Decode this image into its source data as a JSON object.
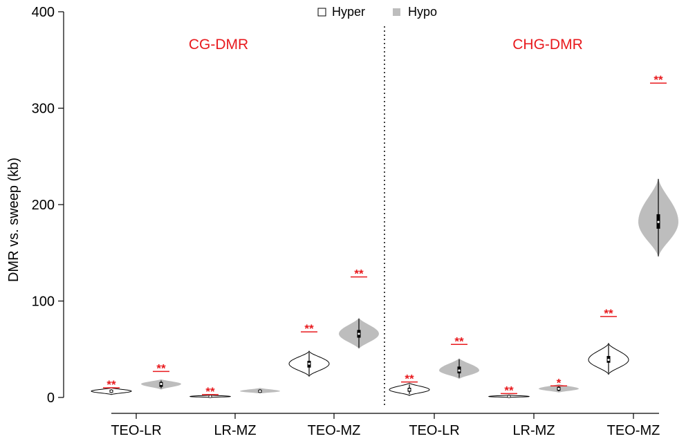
{
  "chart_data": {
    "type": "violin",
    "ylabel": "DMR vs. sweep (kb)",
    "ylim": [
      0,
      400
    ],
    "yticks": [
      0,
      100,
      200,
      300,
      400
    ],
    "categories": [
      "TEO-LR",
      "LR-MZ",
      "TEO-MZ",
      "TEO-LR",
      "LR-MZ",
      "TEO-MZ"
    ],
    "panels": [
      "CG-DMR",
      "CHG-DMR"
    ],
    "legend": [
      {
        "label": "Hyper",
        "color": "#ffffff"
      },
      {
        "label": "Hypo",
        "color": "#bdbdbd"
      }
    ],
    "legend_position": "top",
    "colors": {
      "hyper_fill": "#ffffff",
      "hypo_fill": "#bdbdbd",
      "significance": "#e8191d",
      "panel_label": "#e8191d"
    },
    "series": [
      {
        "name": "Hyper",
        "values": [
          {
            "median": 6.5,
            "q1": 5,
            "q3": 8,
            "min": 3,
            "max": 10
          },
          {
            "median": 1,
            "q1": 0.5,
            "q3": 1.5,
            "min": 0,
            "max": 2.5
          },
          {
            "median": 35,
            "q1": 31,
            "q3": 38,
            "min": 22,
            "max": 48
          },
          {
            "median": 8,
            "q1": 6,
            "q3": 10,
            "min": 2,
            "max": 15
          },
          {
            "median": 1,
            "q1": 0.5,
            "q3": 1.5,
            "min": 0,
            "max": 2.5
          },
          {
            "median": 39,
            "q1": 36,
            "q3": 43,
            "min": 24,
            "max": 56
          }
        ]
      },
      {
        "name": "Hypo",
        "values": [
          {
            "median": 14,
            "q1": 11,
            "q3": 16,
            "min": 8,
            "max": 19
          },
          {
            "median": 6.5,
            "q1": 5,
            "q3": 8,
            "min": 4,
            "max": 10
          },
          {
            "median": 66,
            "q1": 62,
            "q3": 70,
            "min": 50,
            "max": 83
          },
          {
            "median": 28,
            "q1": 25,
            "q3": 32,
            "min": 19,
            "max": 41
          },
          {
            "median": 9,
            "q1": 7,
            "q3": 11,
            "min": 5,
            "max": 14
          },
          {
            "median": 182,
            "q1": 175,
            "q3": 190,
            "min": 145,
            "max": 228
          }
        ]
      }
    ],
    "significance": [
      {
        "label": "**",
        "y": 10
      },
      {
        "label": "**",
        "y": 27
      },
      {
        "label": "**",
        "y": 3
      },
      {
        "label": "",
        "y": 0
      },
      {
        "label": "**",
        "y": 68
      },
      {
        "label": "**",
        "y": 125
      },
      {
        "label": "**",
        "y": 16
      },
      {
        "label": "**",
        "y": 55
      },
      {
        "label": "**",
        "y": 4
      },
      {
        "label": "*",
        "y": 12
      },
      {
        "label": "**",
        "y": 84
      },
      {
        "label": "**",
        "y": 326
      }
    ]
  }
}
